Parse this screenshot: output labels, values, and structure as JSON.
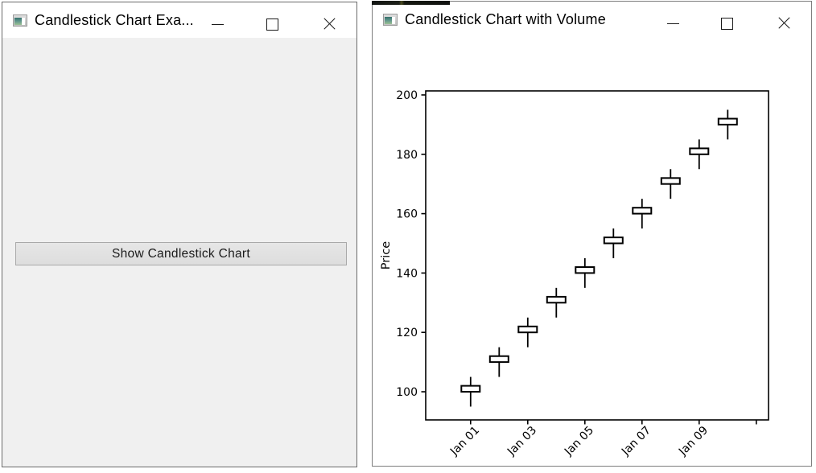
{
  "left_window": {
    "title": "Candlestick Chart Exa...",
    "show_chart_button": "Show Candlestick Chart",
    "icons": {
      "app": "tk-app-icon",
      "minimize": "minimize-icon",
      "maximize": "maximize-icon",
      "close": "close-icon"
    }
  },
  "right_window": {
    "title": "Candlestick Chart with Volume",
    "icons": {
      "app": "tk-app-icon",
      "minimize": "minimize-icon",
      "maximize": "maximize-icon",
      "close": "close-icon"
    }
  },
  "chart_data": {
    "type": "candlestick",
    "title": "",
    "xlabel": "",
    "ylabel": "Price",
    "dates": [
      "Jan 01",
      "Jan 02",
      "Jan 03",
      "Jan 04",
      "Jan 05",
      "Jan 06",
      "Jan 07",
      "Jan 08",
      "Jan 09",
      "Jan 10"
    ],
    "open": [
      100,
      110,
      120,
      130,
      140,
      150,
      160,
      170,
      180,
      190
    ],
    "high": [
      105,
      115,
      125,
      135,
      145,
      155,
      165,
      175,
      185,
      195
    ],
    "low": [
      95,
      105,
      115,
      125,
      135,
      145,
      155,
      165,
      175,
      185
    ],
    "close": [
      102,
      112,
      122,
      132,
      142,
      152,
      162,
      172,
      182,
      192
    ],
    "ylim": [
      90,
      200
    ],
    "yticks": [
      100,
      120,
      140,
      160,
      180,
      200
    ],
    "xticks": [
      {
        "day": 1,
        "label": "Jan 01"
      },
      {
        "day": 3,
        "label": "Jan 03"
      },
      {
        "day": 5,
        "label": "Jan 05"
      },
      {
        "day": 7,
        "label": "Jan 07"
      },
      {
        "day": 9,
        "label": "Jan 09"
      },
      {
        "day": 11,
        "label": ""
      }
    ],
    "grid": false,
    "legend": null,
    "candle_fill": "#ffffff",
    "candle_stroke": "#000000",
    "axis_color": "#000000"
  }
}
